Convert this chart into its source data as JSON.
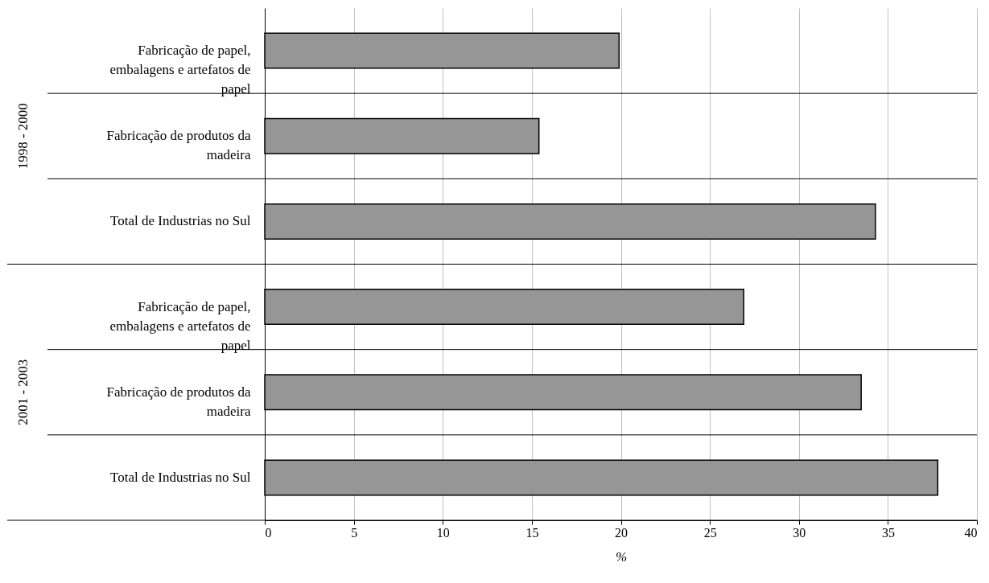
{
  "chart_data": {
    "type": "bar",
    "orientation": "horizontal",
    "categories": [
      "Fabricação de papel, embalagens e artefatos de papel",
      "Fabricação de produtos da madeira",
      "Total de Industrias no Sul",
      "Fabricação de papel, embalagens e artefatos de papel",
      "Fabricação de produtos da madeira",
      "Total de Industrias no Sul"
    ],
    "values": [
      19.9,
      15.4,
      34.3,
      26.9,
      33.5,
      37.8
    ],
    "color": "#969696",
    "xlim": [
      0,
      40
    ],
    "xticks": [
      0,
      5,
      10,
      15,
      20,
      25,
      30,
      35,
      40
    ],
    "xlabel": "%",
    "annotations": [
      "1998 - 2000",
      "2001 - 2003"
    ],
    "grid": true
  }
}
